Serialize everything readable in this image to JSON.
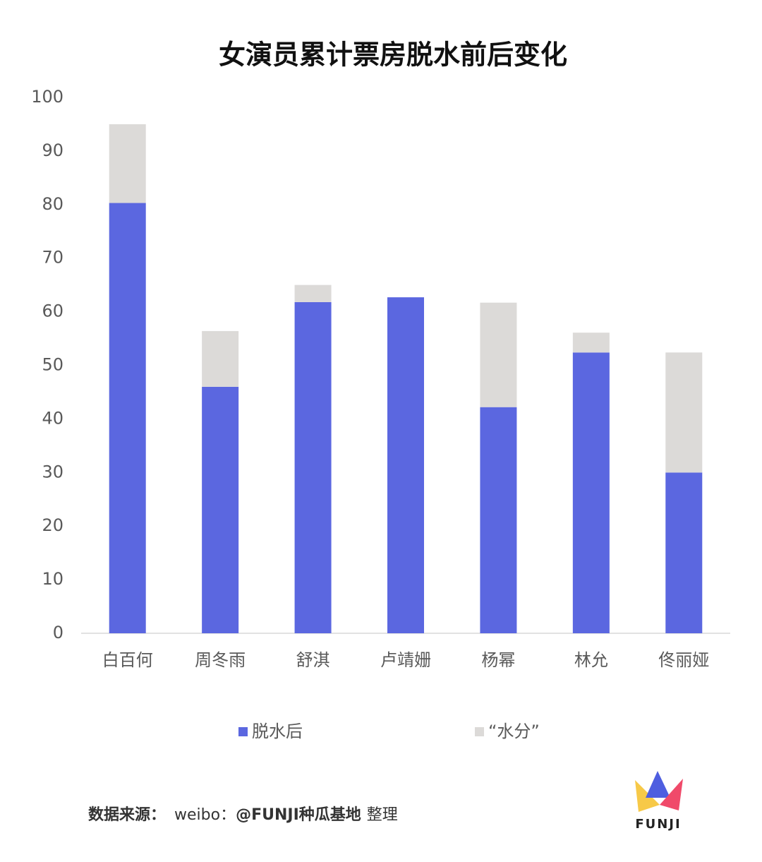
{
  "chart_data": {
    "type": "stacked_bar",
    "title": "女演员累计票房脱水前后变化",
    "categories": [
      "白百何",
      "周冬雨",
      "舒淇",
      "卢靖姗",
      "杨幂",
      "林允",
      "佟丽娅"
    ],
    "series": [
      {
        "name": "脱水后",
        "color": "#5b67e0",
        "values": [
          80.3,
          46.0,
          61.8,
          62.7,
          42.2,
          52.4,
          30.0
        ]
      },
      {
        "name": "“水分”",
        "color": "#dcdad8",
        "values": [
          14.7,
          10.4,
          3.2,
          0,
          19.5,
          3.7,
          22.4
        ]
      }
    ],
    "ylim": [
      0,
      100
    ],
    "yticks": [
      0,
      10,
      20,
      30,
      40,
      50,
      60,
      70,
      80,
      90,
      100
    ],
    "legend": "bottom"
  },
  "footer": {
    "source_label": "数据来源：",
    "platform": "weibo：",
    "account": "@FUNJI种瓜基地",
    "note": "整理"
  },
  "logo": "FUNJI"
}
